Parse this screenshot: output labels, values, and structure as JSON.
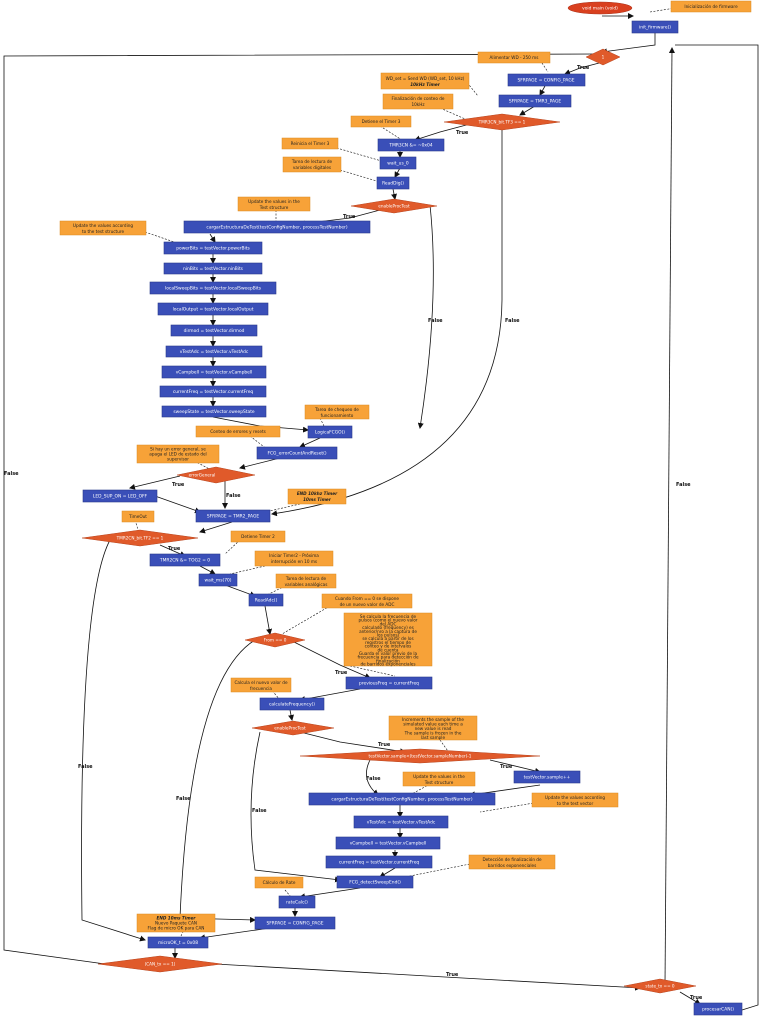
{
  "start": "void main (void)",
  "notes": {
    "init_fw": "Inicialización de firmware",
    "wdt": "Alimentar WD - 250 ms",
    "wd_set": [
      "WD_set = Send WD (WD_set, 10 kHz)",
      "10kHz Timer"
    ],
    "fin_conteo": [
      "Finalización de conteo de",
      "10kHz"
    ],
    "det_t3": "Detiene el Timer 3",
    "rein_t3": "Reinicia el Timer 3",
    "tareas_dig": [
      "Tarea de lectura de",
      "variables digitales"
    ],
    "upd_test": [
      "Update the values in the",
      "Test structure"
    ],
    "upd_vals": [
      "Update the values according",
      "to the test structure"
    ],
    "tareas_chk": [
      "Tarea de chequeo de",
      "funcionamiento"
    ],
    "conteo_err": "Conteo de errores y resets",
    "error_gen": [
      "Si hay un error general, se",
      "apaga el LED de estado del",
      "supervisor"
    ],
    "end_10khz": [
      "END 10khz Timer",
      "10ms Timer"
    ],
    "timeout": "TimeOut",
    "det_t2": "Detiene Timer 2",
    "init_t2": [
      "Iniciar Timer2 - Próxima",
      "interrupción en 10 ms"
    ],
    "tareas_ana": [
      "Tarea de lectura de",
      "variables analógicas"
    ],
    "cuando_from": [
      "Cuando From == 0 se dispone",
      "de un nuevo valor de ADC"
    ],
    "frecuencia": [
      "Se calcula la frecuencia de",
      "pulsos (como el nuevo valor",
      "del ADC",
      "calculado (frequency) es",
      "anterior/nro a la captura de",
      "los pulsos)",
      "se calcula a partir de los",
      "registros el tiempo de",
      "conteo y de intervalos",
      "de cuenta",
      "Guarda el valor previo de la",
      "frecuencia para detección de",
      "finalización",
      "de barridos exponenciales"
    ],
    "calcula_freq": [
      "Calcula el nuevo valor de",
      "frecuencia"
    ],
    "increments": [
      "Increments the sample of the",
      "simulated value each time a",
      "new value is read",
      "The sample is frozen in the",
      "last sample"
    ],
    "upd_test2": [
      "Update the values in the",
      "Test structure"
    ],
    "upd_vals2": [
      "Update the values according",
      "to the test vector"
    ],
    "deteccion": [
      "Detección de finalización de",
      "barridos exponenciales"
    ],
    "calculo_rate": "Cálculo de Rate",
    "end_10ms": [
      "END 10ms Timer",
      "Nuevo Paquete CAN",
      "Flag de micro OK para CAN"
    ]
  },
  "nodes": {
    "init_fw": "init_firmware()",
    "sfrpage_config": "SFRPAGE = CONFIG_PAGE",
    "sfrpage_tmr3": "SFRPAGE = TMR3_PAGE",
    "tmr3cn": "TMR3CN &= ~0x04",
    "wait_us": "wait_us_0",
    "readdig": "ReadDig()",
    "cargar": "cargarEstructuraDeTest(testConfigNumber, processTestNumber)",
    "powerbits": "powerBits = testVector.powerBits",
    "ninbits": "ninBits = testVector.ninBits",
    "localsweep": "localSweepBits = testVector.localSweepBits",
    "localoutput": "localOutput = testVector.localOutput",
    "dirmod": "dirmod = testVector.dirmod",
    "vtestadc": "vTestAdc = testVector.vTestAdc",
    "vcampbell": "vCampbell = testVector.vCampbell",
    "currentfreq": "currentFreq = testVector.currentFreq",
    "sweepstate": "sweepState = testVector.sweepState",
    "logicafcgo": "LogicaFCGO()",
    "fcg_error": "FCG_errorCountAndReset()",
    "led_sup": "LED_SUP_ON = LED_OFF",
    "sfrpage_tmr2": "SFRPAGE = TMR2_PAGE",
    "tmr2cn": "TMR2CN &= TOG2 = 0",
    "wait_ms": "wait_ms(70)",
    "readadc": "ReadAdc()",
    "prevfreq": "previousFreq = currentFreq",
    "calcfreq": "calculateFrequency()",
    "testvector_sample": "testVector.sample++",
    "cargar2": "cargarEstructuraDeTest(testConfigNumber, processTestNumber)",
    "vtestadc2": "vTestAdc = testVector.vTestAdc",
    "vcampbell2": "vCampbell = testVector.vCampbell",
    "currentfreq2": "currentFreq = testVector.currentFreq",
    "fcg_detect": "FCG_detectSweepEnd()",
    "ratecalc": "rateCalc()",
    "sfrpage_config2": "SFRPAGE = CONFIG_PAGE",
    "microok": "microOK_t = 0x08",
    "procesar": "procesarCAN()"
  },
  "decisions": {
    "d1": "1",
    "d_tmr3": "TMR3CN_bit.TF3 == 1",
    "d_enable": "enableProcTest",
    "d_error": "errorGeneral",
    "d_tmr2": "TMR2CN_bit.TF2 == 1",
    "d_from": "From == 0",
    "d_enable2": "enableProcTest",
    "d_sample": "testVector.sample<(testVector.sampleNumber)-1",
    "d_can": "(CAN_tx == 1)",
    "d_state": "state_tx == 0"
  },
  "labels": {
    "true": "True",
    "false": "False"
  }
}
